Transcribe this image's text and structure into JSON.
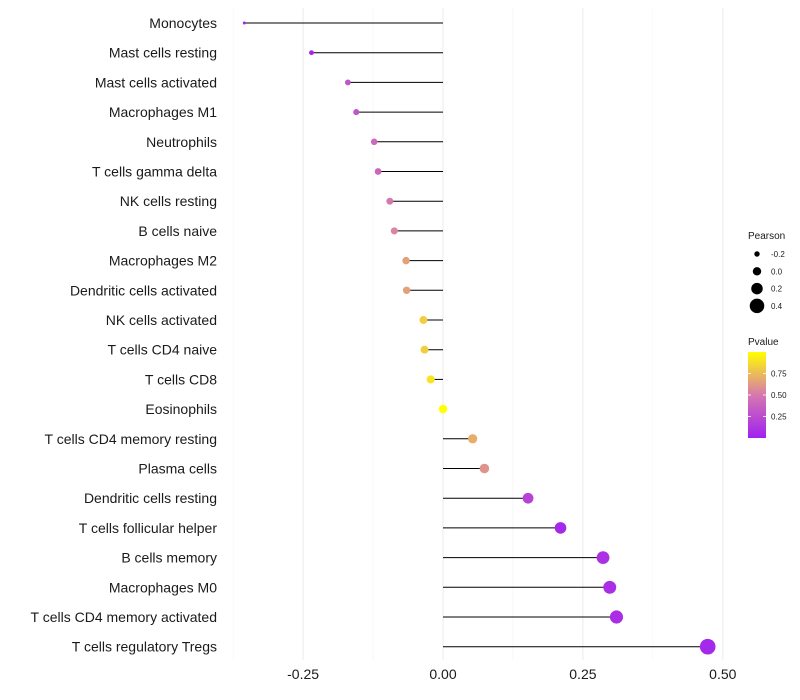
{
  "chart_data": {
    "type": "lollipop",
    "categories": [
      "Monocytes",
      "Mast cells resting",
      "Mast cells activated",
      "Macrophages M1",
      "Neutrophils",
      "T cells gamma delta",
      "NK cells resting",
      "B cells naive",
      "Macrophages M2",
      "Dendritic cells activated",
      "NK cells activated",
      "T cells CD4 naive",
      "T cells CD8",
      "Eosinophils",
      "T cells CD4 memory resting",
      "Plasma cells",
      "Dendritic cells resting",
      "T cells follicular helper",
      "B cells memory",
      "Macrophages M0",
      "T cells CD4 memory activated",
      "T cells regulatory  Tregs"
    ],
    "pearson": [
      -0.355,
      -0.235,
      -0.17,
      -0.155,
      -0.123,
      -0.116,
      -0.095,
      -0.087,
      -0.066,
      -0.065,
      -0.035,
      -0.033,
      -0.022,
      0.0,
      0.053,
      0.074,
      0.152,
      0.21,
      0.286,
      0.298,
      0.31,
      0.473
    ],
    "pvalue": [
      0.02,
      0.04,
      0.3,
      0.3,
      0.42,
      0.4,
      0.5,
      0.55,
      0.65,
      0.65,
      0.82,
      0.82,
      0.9,
      1.0,
      0.7,
      0.6,
      0.2,
      0.05,
      0.1,
      0.08,
      0.08,
      0.05
    ],
    "x_ticks": [
      -0.25,
      0.0,
      0.25,
      0.5
    ],
    "x_tick_labels": [
      "-0.25",
      "0.00",
      "0.25",
      "0.50"
    ],
    "xlim": [
      -0.375,
      0.5
    ],
    "size_legend": {
      "title": "Pearson",
      "values": [
        -0.2,
        0.0,
        0.2,
        0.4
      ],
      "labels": [
        "-0.2",
        "0.0",
        "0.2",
        "0.4"
      ]
    },
    "color_legend": {
      "title": "Pvalue",
      "ticks": [
        0.25,
        0.5,
        0.75
      ],
      "labels": [
        "0.25",
        "0.50",
        "0.75"
      ],
      "range": [
        0.0,
        1.0
      ],
      "low_color": "#a020f0",
      "mid_color": "#d678b0",
      "high_color": "#ffff00"
    },
    "grid": true,
    "segment_color": "#000000"
  }
}
